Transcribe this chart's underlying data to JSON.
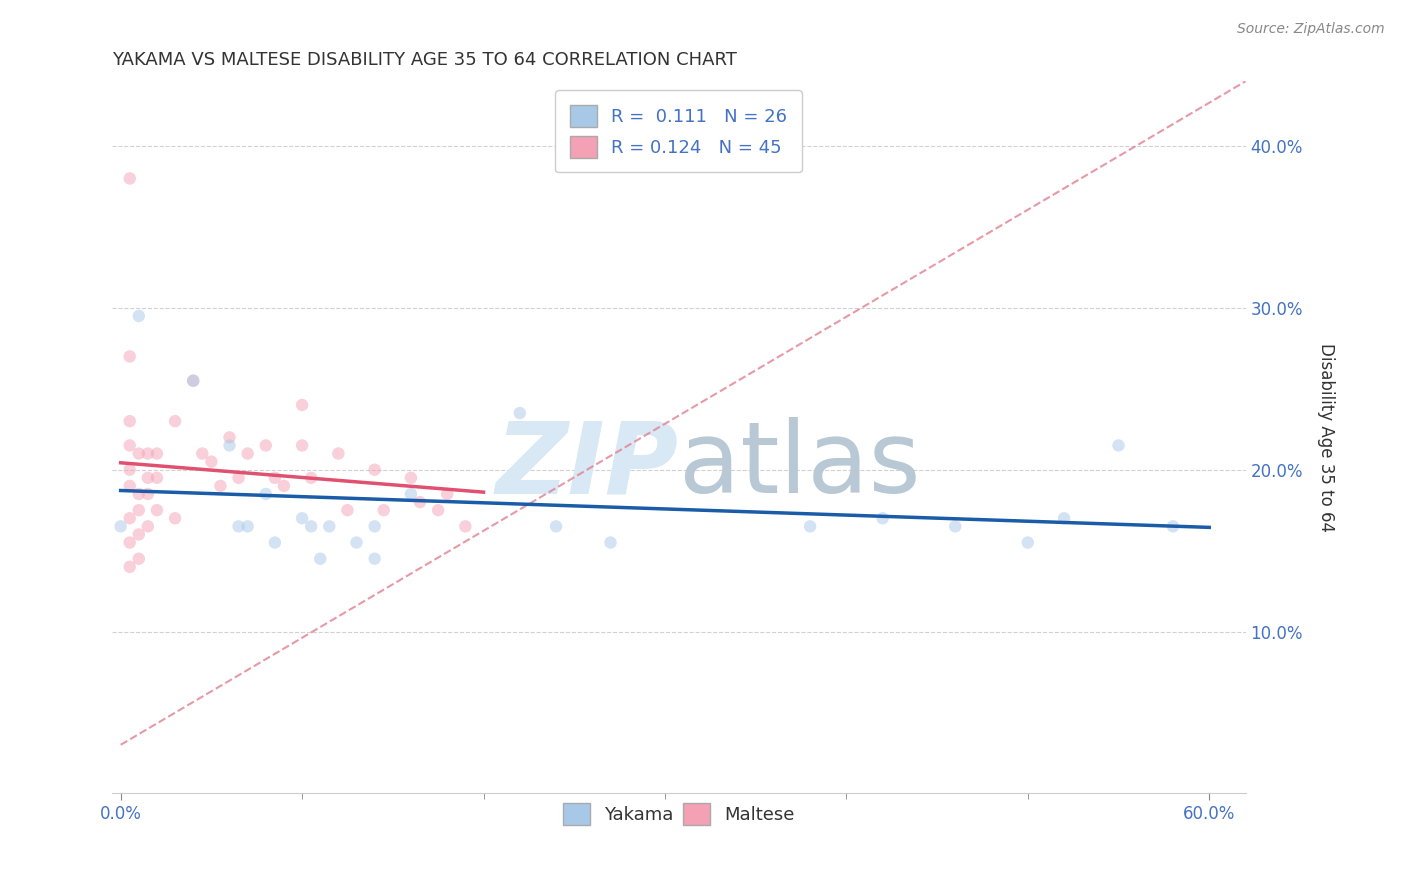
{
  "title": "YAKAMA VS MALTESE DISABILITY AGE 35 TO 64 CORRELATION CHART",
  "source": "Source: ZipAtlas.com",
  "xlabel": "",
  "ylabel": "Disability Age 35 to 64",
  "xlim": [
    -0.005,
    0.62
  ],
  "ylim": [
    0.0,
    0.44
  ],
  "xticks": [
    0.0,
    0.6
  ],
  "yticks": [
    0.1,
    0.2,
    0.3,
    0.4
  ],
  "ytick_labels": [
    "10.0%",
    "20.0%",
    "30.0%",
    "40.0%"
  ],
  "xtick_labels": [
    "0.0%",
    "60.0%"
  ],
  "grid_yticks": [
    0.1,
    0.2,
    0.3,
    0.4
  ],
  "yakama_color": "#a8c8e8",
  "maltese_color": "#f4a0b5",
  "yakama_line_color": "#1a5ca8",
  "maltese_line_color": "#e05070",
  "ref_line_color": "#e08090",
  "R_yakama": 0.111,
  "N_yakama": 26,
  "R_maltese": 0.124,
  "N_maltese": 45,
  "yakama_x": [
    0.0,
    0.01,
    0.04,
    0.06,
    0.065,
    0.07,
    0.08,
    0.085,
    0.1,
    0.105,
    0.11,
    0.115,
    0.13,
    0.14,
    0.14,
    0.16,
    0.22,
    0.24,
    0.27,
    0.38,
    0.42,
    0.46,
    0.5,
    0.52,
    0.55,
    0.58
  ],
  "yakama_y": [
    0.165,
    0.295,
    0.255,
    0.215,
    0.165,
    0.165,
    0.185,
    0.155,
    0.17,
    0.165,
    0.145,
    0.165,
    0.155,
    0.165,
    0.145,
    0.185,
    0.235,
    0.165,
    0.155,
    0.165,
    0.17,
    0.165,
    0.155,
    0.17,
    0.215,
    0.165
  ],
  "maltese_x": [
    0.005,
    0.005,
    0.005,
    0.005,
    0.005,
    0.005,
    0.005,
    0.005,
    0.005,
    0.01,
    0.01,
    0.01,
    0.01,
    0.01,
    0.015,
    0.015,
    0.015,
    0.015,
    0.02,
    0.02,
    0.02,
    0.03,
    0.03,
    0.04,
    0.045,
    0.05,
    0.055,
    0.06,
    0.065,
    0.07,
    0.08,
    0.085,
    0.09,
    0.1,
    0.1,
    0.105,
    0.12,
    0.125,
    0.14,
    0.145,
    0.16,
    0.165,
    0.175,
    0.18,
    0.19
  ],
  "maltese_y": [
    0.38,
    0.27,
    0.23,
    0.215,
    0.2,
    0.19,
    0.17,
    0.155,
    0.14,
    0.21,
    0.185,
    0.175,
    0.16,
    0.145,
    0.21,
    0.195,
    0.185,
    0.165,
    0.21,
    0.195,
    0.175,
    0.23,
    0.17,
    0.255,
    0.21,
    0.205,
    0.19,
    0.22,
    0.195,
    0.21,
    0.215,
    0.195,
    0.19,
    0.24,
    0.215,
    0.195,
    0.21,
    0.175,
    0.2,
    0.175,
    0.195,
    0.18,
    0.175,
    0.185,
    0.165
  ],
  "legend_fontsize": 13,
  "title_fontsize": 13,
  "axis_label_fontsize": 12,
  "tick_fontsize": 12,
  "scatter_size": 80,
  "scatter_alpha": 0.5,
  "background_color": "#ffffff",
  "grid_color": "#cccccc",
  "watermark_text": "ZIPatlas",
  "watermark_color": "#d8e8f4"
}
